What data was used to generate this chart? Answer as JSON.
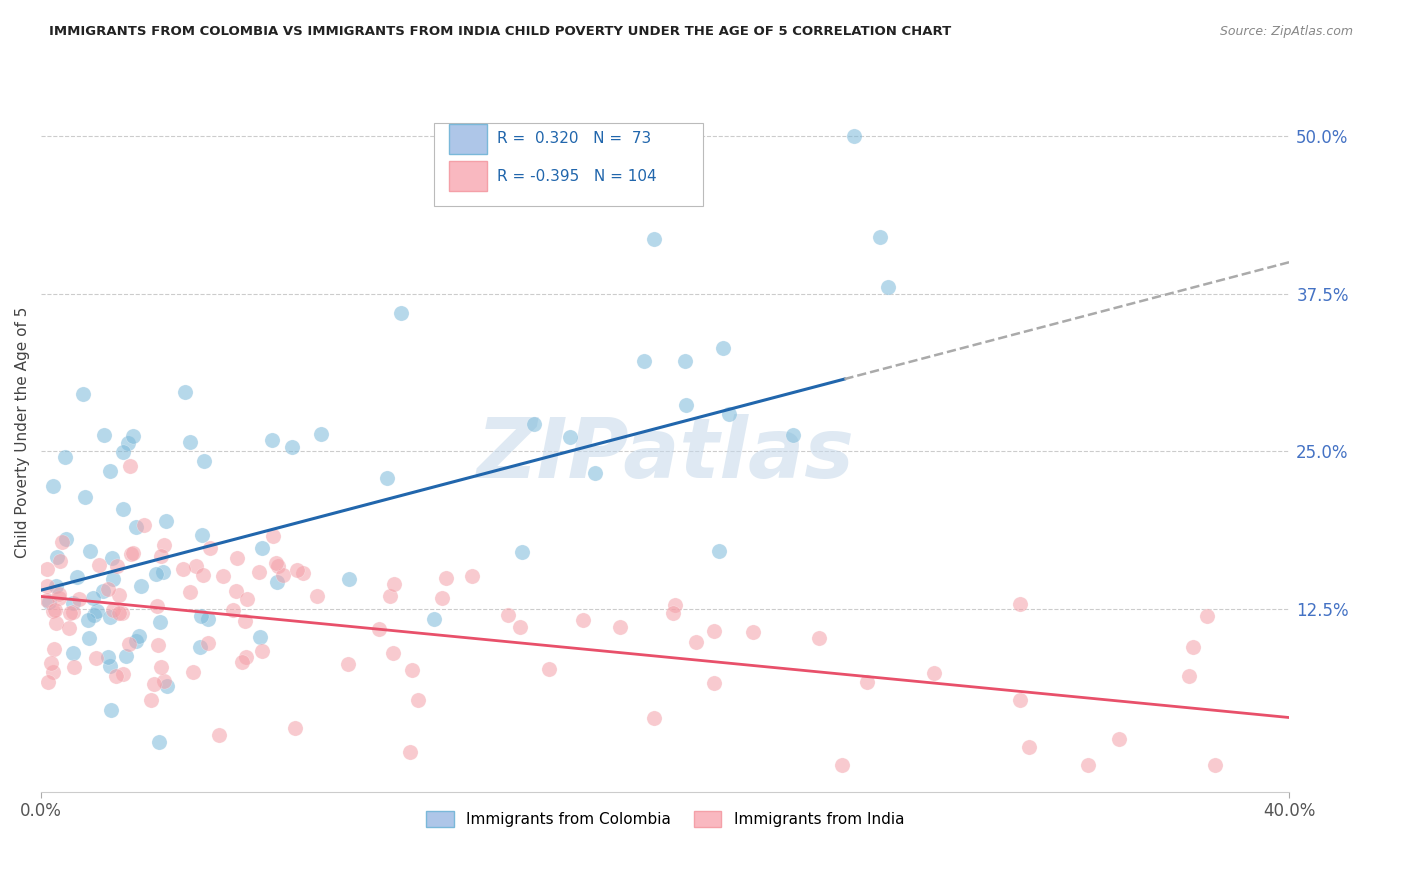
{
  "title": "IMMIGRANTS FROM COLOMBIA VS IMMIGRANTS FROM INDIA CHILD POVERTY UNDER THE AGE OF 5 CORRELATION CHART",
  "source": "Source: ZipAtlas.com",
  "ylabel": "Child Poverty Under the Age of 5",
  "xlim": [
    0.0,
    0.4
  ],
  "ylim": [
    -0.02,
    0.55
  ],
  "y_ticks_right": [
    0.125,
    0.25,
    0.375,
    0.5
  ],
  "y_tick_labels_right": [
    "12.5%",
    "25.0%",
    "37.5%",
    "50.0%"
  ],
  "legend_R_colombia": "0.320",
  "legend_N_colombia": "73",
  "legend_R_india": "-0.395",
  "legend_N_india": "104",
  "colombia_color": "#7ab8d9",
  "india_color": "#f4a0a8",
  "colombia_edge": "#7ab8d9",
  "india_edge": "#f4a0a8",
  "trend_colombia_color": "#2166ac",
  "trend_india_color": "#e8506a",
  "trend_dashed_color": "#aaaaaa",
  "watermark": "ZIPatlas",
  "grid_color": "#cccccc"
}
